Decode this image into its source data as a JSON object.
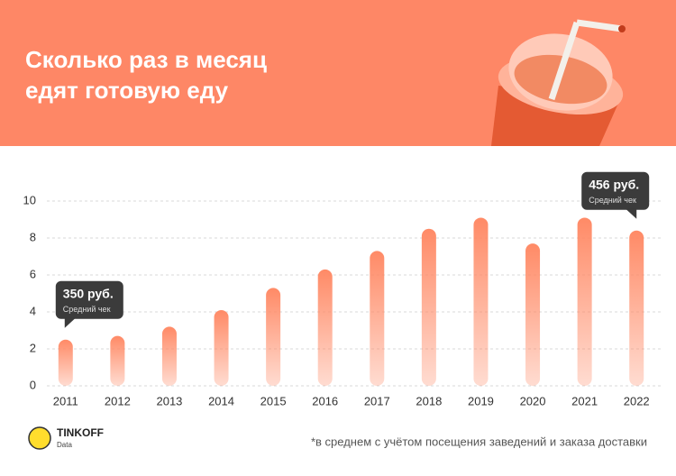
{
  "chart_data": {
    "type": "bar",
    "title": "Сколько раз в месяц едят готовую еду",
    "categories": [
      "2011",
      "2012",
      "2013",
      "2014",
      "2015",
      "2016",
      "2017",
      "2018",
      "2019",
      "2020",
      "2021",
      "2022"
    ],
    "values": [
      2.5,
      2.7,
      3.2,
      4.1,
      5.3,
      6.3,
      7.3,
      8.5,
      9.1,
      7.7,
      9.1,
      8.4
    ],
    "color": "#ff8a66",
    "ylim": [
      0,
      10
    ],
    "yticks": [
      0,
      2,
      4,
      6,
      8,
      10
    ],
    "grid": true,
    "annotations": [
      {
        "category": "2011",
        "text": "350 руб.",
        "subtext": "Средний чек"
      },
      {
        "category": "2022",
        "text": "456 руб.",
        "subtext": "Средний чек"
      }
    ],
    "footnote": "*в среднем с учётом посещения заведений и заказа доставки",
    "brand": "TINKOFF",
    "brand_sub": "Data"
  }
}
